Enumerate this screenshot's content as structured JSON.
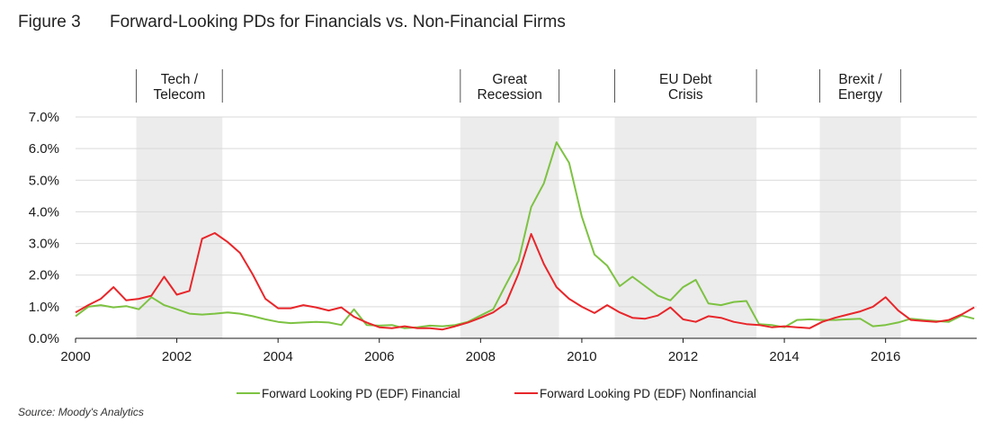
{
  "figure": {
    "number": "Figure 3",
    "title": "Forward-Looking PDs for Financials vs. Non-Financial Firms",
    "source": "Source: Moody's Analytics"
  },
  "chart_data": {
    "type": "line",
    "title": "Forward-Looking PDs for Financials vs. Non-Financial Firms",
    "xlabel": "",
    "ylabel": "",
    "xlim": [
      2000,
      2017.8
    ],
    "ylim": [
      0,
      7.0
    ],
    "x_ticks": [
      2000,
      2002,
      2004,
      2006,
      2008,
      2010,
      2012,
      2014,
      2016
    ],
    "y_ticks": [
      "0.0%",
      "1.0%",
      "2.0%",
      "3.0%",
      "4.0%",
      "5.0%",
      "6.0%",
      "7.0%"
    ],
    "grid": "horizontal",
    "legend": "bottom",
    "shaded_periods": [
      {
        "label_lines": [
          "Tech /",
          "Telecom"
        ],
        "start": 2001.2,
        "end": 2002.9
      },
      {
        "label_lines": [
          "Great",
          "Recession"
        ],
        "start": 2007.6,
        "end": 2009.55
      },
      {
        "label_lines": [
          "EU Debt",
          "Crisis"
        ],
        "start": 2010.65,
        "end": 2013.45
      },
      {
        "label_lines": [
          "Brexit /",
          "Energy"
        ],
        "start": 2014.7,
        "end": 2016.3
      }
    ],
    "series": [
      {
        "name": "Forward Looking PD (EDF) Financial",
        "color": "#7dc242",
        "points": [
          [
            2000.0,
            0.7
          ],
          [
            2000.25,
            1.0
          ],
          [
            2000.5,
            1.05
          ],
          [
            2000.75,
            0.98
          ],
          [
            2001.0,
            1.02
          ],
          [
            2001.25,
            0.92
          ],
          [
            2001.5,
            1.3
          ],
          [
            2001.75,
            1.05
          ],
          [
            2002.0,
            0.92
          ],
          [
            2002.25,
            0.78
          ],
          [
            2002.5,
            0.75
          ],
          [
            2002.75,
            0.78
          ],
          [
            2003.0,
            0.82
          ],
          [
            2003.25,
            0.78
          ],
          [
            2003.5,
            0.7
          ],
          [
            2003.75,
            0.6
          ],
          [
            2004.0,
            0.52
          ],
          [
            2004.25,
            0.48
          ],
          [
            2004.5,
            0.5
          ],
          [
            2004.75,
            0.52
          ],
          [
            2005.0,
            0.5
          ],
          [
            2005.25,
            0.42
          ],
          [
            2005.5,
            0.92
          ],
          [
            2005.75,
            0.42
          ],
          [
            2006.0,
            0.4
          ],
          [
            2006.25,
            0.42
          ],
          [
            2006.5,
            0.32
          ],
          [
            2006.75,
            0.35
          ],
          [
            2007.0,
            0.4
          ],
          [
            2007.25,
            0.38
          ],
          [
            2007.5,
            0.42
          ],
          [
            2007.75,
            0.52
          ],
          [
            2008.0,
            0.72
          ],
          [
            2008.25,
            0.92
          ],
          [
            2008.5,
            1.7
          ],
          [
            2008.75,
            2.45
          ],
          [
            2009.0,
            4.15
          ],
          [
            2009.25,
            4.9
          ],
          [
            2009.5,
            6.2
          ],
          [
            2009.75,
            5.55
          ],
          [
            2010.0,
            3.85
          ],
          [
            2010.25,
            2.65
          ],
          [
            2010.5,
            2.3
          ],
          [
            2010.75,
            1.65
          ],
          [
            2011.0,
            1.95
          ],
          [
            2011.25,
            1.65
          ],
          [
            2011.5,
            1.35
          ],
          [
            2011.75,
            1.2
          ],
          [
            2012.0,
            1.62
          ],
          [
            2012.25,
            1.85
          ],
          [
            2012.5,
            1.1
          ],
          [
            2012.75,
            1.05
          ],
          [
            2013.0,
            1.15
          ],
          [
            2013.25,
            1.18
          ],
          [
            2013.5,
            0.45
          ],
          [
            2013.75,
            0.42
          ],
          [
            2014.0,
            0.35
          ],
          [
            2014.25,
            0.58
          ],
          [
            2014.5,
            0.6
          ],
          [
            2014.75,
            0.58
          ],
          [
            2015.0,
            0.58
          ],
          [
            2015.25,
            0.6
          ],
          [
            2015.5,
            0.62
          ],
          [
            2015.75,
            0.38
          ],
          [
            2016.0,
            0.42
          ],
          [
            2016.25,
            0.5
          ],
          [
            2016.5,
            0.62
          ],
          [
            2016.75,
            0.58
          ],
          [
            2017.0,
            0.55
          ],
          [
            2017.25,
            0.52
          ],
          [
            2017.5,
            0.72
          ],
          [
            2017.75,
            0.62
          ],
          [
            2018.0,
            0.58
          ]
        ]
      },
      {
        "name": "Forward Looking PD (EDF) Nonfinancial",
        "color": "#e8262a",
        "points": [
          [
            2000.0,
            0.82
          ],
          [
            2000.25,
            1.05
          ],
          [
            2000.5,
            1.25
          ],
          [
            2000.75,
            1.62
          ],
          [
            2001.0,
            1.2
          ],
          [
            2001.25,
            1.25
          ],
          [
            2001.5,
            1.35
          ],
          [
            2001.75,
            1.95
          ],
          [
            2002.0,
            1.38
          ],
          [
            2002.25,
            1.5
          ],
          [
            2002.5,
            3.15
          ],
          [
            2002.75,
            3.33
          ],
          [
            2003.0,
            3.05
          ],
          [
            2003.25,
            2.7
          ],
          [
            2003.5,
            2.02
          ],
          [
            2003.75,
            1.25
          ],
          [
            2004.0,
            0.95
          ],
          [
            2004.25,
            0.95
          ],
          [
            2004.5,
            1.05
          ],
          [
            2004.75,
            0.98
          ],
          [
            2005.0,
            0.88
          ],
          [
            2005.25,
            0.98
          ],
          [
            2005.5,
            0.68
          ],
          [
            2005.75,
            0.5
          ],
          [
            2006.0,
            0.35
          ],
          [
            2006.25,
            0.32
          ],
          [
            2006.5,
            0.38
          ],
          [
            2006.75,
            0.32
          ],
          [
            2007.0,
            0.32
          ],
          [
            2007.25,
            0.28
          ],
          [
            2007.5,
            0.38
          ],
          [
            2007.75,
            0.5
          ],
          [
            2008.0,
            0.65
          ],
          [
            2008.25,
            0.82
          ],
          [
            2008.5,
            1.1
          ],
          [
            2008.75,
            2.05
          ],
          [
            2009.0,
            3.3
          ],
          [
            2009.25,
            2.35
          ],
          [
            2009.5,
            1.62
          ],
          [
            2009.75,
            1.25
          ],
          [
            2010.0,
            1.0
          ],
          [
            2010.25,
            0.8
          ],
          [
            2010.5,
            1.05
          ],
          [
            2010.75,
            0.82
          ],
          [
            2011.0,
            0.65
          ],
          [
            2011.25,
            0.62
          ],
          [
            2011.5,
            0.72
          ],
          [
            2011.75,
            0.98
          ],
          [
            2012.0,
            0.6
          ],
          [
            2012.25,
            0.52
          ],
          [
            2012.5,
            0.7
          ],
          [
            2012.75,
            0.65
          ],
          [
            2013.0,
            0.52
          ],
          [
            2013.25,
            0.45
          ],
          [
            2013.5,
            0.42
          ],
          [
            2013.75,
            0.35
          ],
          [
            2014.0,
            0.38
          ],
          [
            2014.25,
            0.35
          ],
          [
            2014.5,
            0.32
          ],
          [
            2014.75,
            0.52
          ],
          [
            2015.0,
            0.65
          ],
          [
            2015.25,
            0.75
          ],
          [
            2015.5,
            0.85
          ],
          [
            2015.75,
            1.0
          ],
          [
            2016.0,
            1.3
          ],
          [
            2016.25,
            0.88
          ],
          [
            2016.5,
            0.58
          ],
          [
            2016.75,
            0.55
          ],
          [
            2017.0,
            0.52
          ],
          [
            2017.25,
            0.58
          ],
          [
            2017.5,
            0.75
          ],
          [
            2017.75,
            0.98
          ]
        ]
      }
    ]
  }
}
